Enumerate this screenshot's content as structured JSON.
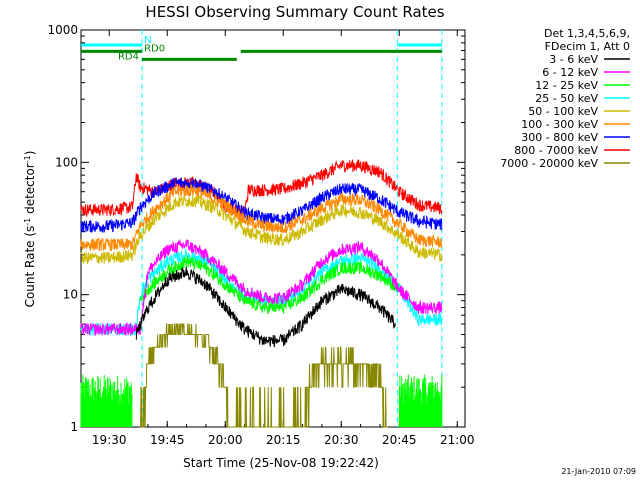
{
  "chart_data": {
    "type": "line",
    "title": "HESSI Observing Summary Count Rates",
    "xlabel": "Start Time (25-Nov-08 19:22:42)",
    "ylabel_main": "Count Rate (s",
    "ylabel_sup1": "-1",
    "ylabel_mid": " detector",
    "ylabel_sup2": "-1",
    "ylabel_end": ")",
    "y_scale": "log",
    "ylim": [
      1,
      1000
    ],
    "xlim": [
      "19:22:42",
      "21:02:00"
    ],
    "grid": false,
    "legend_position": "right",
    "legend_header": [
      "Det 1,3,4,5,6,9,",
      "FDecim 1, Att 0"
    ],
    "x_ticks": [
      {
        "t": "19:30",
        "label": "19:30"
      },
      {
        "t": "19:45",
        "label": "19:45"
      },
      {
        "t": "20:00",
        "label": "20:00"
      },
      {
        "t": "20:15",
        "label": "20:15"
      },
      {
        "t": "20:30",
        "label": "20:30"
      },
      {
        "t": "20:45",
        "label": "20:45"
      },
      {
        "t": "21:00",
        "label": "21:00"
      }
    ],
    "y_ticks": [
      {
        "v": 1,
        "label": "1"
      },
      {
        "v": 10,
        "label": "10"
      },
      {
        "v": 100,
        "label": "100"
      },
      {
        "v": 1000,
        "label": "1000"
      }
    ],
    "data_gaps": [
      [
        "19:22:42",
        "19:38:30"
      ],
      [
        "20:44:30",
        "21:02:00"
      ]
    ],
    "vertical_markers": [
      {
        "t": "19:38:30",
        "style": "dashed",
        "color": "#00ffff"
      },
      {
        "t": "20:44:30",
        "style": "dashed",
        "color": "#00ffff"
      },
      {
        "t": "20:56:00",
        "style": "dashed",
        "color": "#00ffff"
      }
    ],
    "series": [
      {
        "name": "3 - 6 keV",
        "color": "#000000",
        "x": [
          "19:37",
          "19:40",
          "19:45",
          "19:50",
          "19:55",
          "20:00",
          "20:05",
          "20:10",
          "20:15",
          "20:20",
          "20:25",
          "20:30",
          "20:35",
          "20:40",
          "20:44"
        ],
        "y": [
          5,
          8,
          13,
          15,
          12,
          8,
          5.5,
          4.5,
          4.5,
          6,
          9,
          11,
          10,
          8,
          6
        ]
      },
      {
        "name": "6 - 12 keV",
        "color": "#ff00ff",
        "x": [
          "19:22:42",
          "19:30",
          "19:35",
          "19:38",
          "19:40",
          "19:45",
          "19:50",
          "19:55",
          "20:00",
          "20:05",
          "20:10",
          "20:15",
          "20:20",
          "20:25",
          "20:30",
          "20:35",
          "20:40",
          "20:45",
          "20:50",
          "20:55",
          "20:56"
        ],
        "y": [
          5.5,
          5.5,
          5.5,
          5.5,
          15,
          22,
          24,
          20,
          15,
          11,
          9.5,
          9.5,
          12,
          18,
          22,
          23,
          18,
          11,
          8,
          8,
          8
        ]
      },
      {
        "name": "12 - 25 keV",
        "color": "#00ff00",
        "x": [
          "19:38",
          "19:40",
          "19:45",
          "19:50",
          "19:55",
          "20:00",
          "20:05",
          "20:10",
          "20:15",
          "20:20",
          "20:25",
          "20:30",
          "20:35",
          "20:40",
          "20:45"
        ],
        "y": [
          9,
          11,
          15,
          18,
          16,
          12,
          9,
          8,
          8,
          9.5,
          13,
          16,
          16,
          14,
          11
        ]
      },
      {
        "name": "25 - 50 keV",
        "color": "#00ffff",
        "x": [
          "19:22:42",
          "19:30",
          "19:37",
          "19:38",
          "19:40",
          "19:45",
          "19:50",
          "19:55",
          "20:00",
          "20:05",
          "20:10",
          "20:15",
          "20:20",
          "20:25",
          "20:30",
          "20:35",
          "20:40",
          "20:45",
          "20:50",
          "20:56"
        ],
        "y": [
          5.5,
          5.5,
          5.5,
          10,
          13,
          18,
          20,
          18,
          13,
          10,
          9,
          9,
          11,
          15,
          18,
          19,
          16,
          11,
          6.5,
          6.5
        ]
      },
      {
        "name": "50 - 100 keV",
        "color": "#ccbb00",
        "x": [
          "19:22:42",
          "19:30",
          "19:36",
          "19:38",
          "19:42",
          "19:47",
          "19:52",
          "19:57",
          "20:00",
          "20:05",
          "20:10",
          "20:15",
          "20:20",
          "20:25",
          "20:30",
          "20:35",
          "20:40",
          "20:45",
          "20:50",
          "20:56"
        ],
        "y": [
          19,
          19,
          20,
          28,
          38,
          50,
          52,
          46,
          40,
          31,
          27,
          26,
          30,
          37,
          44,
          42,
          36,
          28,
          21,
          20
        ]
      },
      {
        "name": "100 - 300 keV",
        "color": "#ff8800",
        "x": [
          "19:22:42",
          "19:30",
          "19:36",
          "19:38",
          "19:42",
          "19:47",
          "19:52",
          "19:57",
          "20:00",
          "20:05",
          "20:10",
          "20:15",
          "20:20",
          "20:25",
          "20:30",
          "20:35",
          "20:40",
          "20:45",
          "20:50",
          "20:56"
        ],
        "y": [
          24,
          24,
          24,
          33,
          45,
          60,
          62,
          53,
          48,
          37,
          33,
          32,
          37,
          45,
          53,
          52,
          44,
          34,
          26,
          25
        ]
      },
      {
        "name": "300 - 800 keV",
        "color": "#0000ff",
        "x": [
          "19:22:42",
          "19:30",
          "19:36",
          "19:38",
          "19:42",
          "19:47",
          "19:52",
          "19:57",
          "20:00",
          "20:05",
          "20:10",
          "20:15",
          "20:20",
          "20:25",
          "20:30",
          "20:35",
          "20:40",
          "20:45",
          "20:50",
          "20:56"
        ],
        "y": [
          33,
          33,
          35,
          46,
          60,
          70,
          70,
          61,
          54,
          42,
          38,
          37,
          43,
          54,
          63,
          62,
          53,
          42,
          36,
          34
        ]
      },
      {
        "name": "800 - 7000 keV",
        "color": "#ff0000",
        "x": [
          "19:22:42",
          "19:30",
          "19:36",
          "19:37",
          "19:38",
          "19:42",
          "19:47",
          "19:52",
          "19:57",
          "20:00",
          "20:05",
          "20:06",
          "20:10",
          "20:15",
          "20:20",
          "20:25",
          "20:30",
          "20:35",
          "20:40",
          "20:45",
          "20:50",
          "20:56"
        ],
        "y": [
          44,
          44,
          46,
          80,
          65,
          60,
          70,
          70,
          60,
          47,
          42,
          62,
          62,
          63,
          70,
          80,
          95,
          95,
          85,
          60,
          48,
          45
        ]
      },
      {
        "name": "7000 - 20000 keV",
        "color": "#888800",
        "x": [
          "19:38",
          "19:40",
          "19:42",
          "19:45",
          "19:50",
          "19:55",
          "20:00",
          "20:01",
          "20:20",
          "20:22",
          "20:25",
          "20:30",
          "20:35",
          "20:40",
          "20:42"
        ],
        "y": [
          1,
          3,
          4,
          5,
          5.5,
          4.5,
          2.5,
          1,
          1,
          2,
          3,
          3,
          3,
          2.5,
          1
        ]
      }
    ],
    "zero_segments": [
      {
        "series": "12 - 25 keV",
        "color": "#00ff00",
        "x": [
          "19:22:42",
          "19:36"
        ],
        "y": 2,
        "note": "dense lower-level noise"
      },
      {
        "series": "12 - 25 keV",
        "color": "#00ff00",
        "x": [
          "20:45",
          "20:56"
        ],
        "y": 2,
        "note": "dense lower-level noise"
      }
    ],
    "flags": [
      {
        "label": "N",
        "color": "#00ffff",
        "y_level": 770,
        "segments": [
          [
            "19:22:42",
            "19:38:30"
          ],
          [
            "20:44:30",
            "20:56:00"
          ]
        ]
      },
      {
        "label": "RD0",
        "color": "#008800",
        "y_level": 690,
        "segments": [
          [
            "19:22:42",
            "19:38:30"
          ],
          [
            "20:04",
            "20:56:00"
          ]
        ]
      },
      {
        "label": "RD4",
        "color": "#008800",
        "y_level": 600,
        "segments": [
          [
            "19:38:30",
            "20:03"
          ]
        ]
      }
    ]
  },
  "stamp": "21-Jan-2010 07:09"
}
